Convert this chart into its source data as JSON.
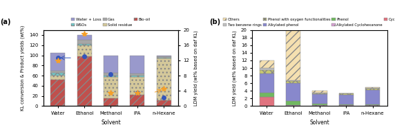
{
  "solvents": [
    "Water",
    "Ethanol",
    "Methanol",
    "IPA",
    "n-Hexane"
  ],
  "chart_a": {
    "bio_oil": [
      52,
      98,
      16,
      22,
      12
    ],
    "solid_residue": [
      8,
      22,
      42,
      36,
      82
    ],
    "wso": [
      5,
      2,
      2,
      2,
      1
    ],
    "gas": [
      5,
      8,
      5,
      4,
      3
    ],
    "water_loss": [
      35,
      10,
      35,
      36,
      2
    ],
    "kl_conversion_pct": [
      95,
      98,
      63,
      26,
      17
    ],
    "ldm_yield_wt": [
      12,
      19,
      3.5,
      3.5,
      4.5
    ],
    "ylim_left": [
      0,
      150
    ],
    "ylim_right": [
      0,
      20
    ],
    "yticks_left": [
      0,
      20,
      40,
      60,
      80,
      100,
      120,
      140
    ],
    "yticks_right": [
      0,
      4,
      8,
      12,
      16,
      20
    ],
    "ylabel_left": "KL conversion & Product yields (wt%)",
    "ylabel_right": "LDM yield (wt% based on daf KL)",
    "xlabel": "Solvent",
    "panel_label": "(a)",
    "colors": {
      "bio_oil": "#c0504d",
      "solid_residue": "#d4c89a",
      "wso": "#70c8c8",
      "gas": "#a6a6a6",
      "water_loss": "#9999cc"
    },
    "kl_conv_color": "#3355bb",
    "ldm_color": "#f5a02a",
    "arrow_kl_color": "#3355bb",
    "arrow_ldm_color": "#f5a02a"
  },
  "chart_b": {
    "cyclohexanone": [
      2.5,
      0.0,
      0.0,
      0.0,
      0.0
    ],
    "alkylated_cyclohexanone": [
      0.0,
      0.3,
      0.2,
      0.2,
      0.2
    ],
    "phenol": [
      1.0,
      1.0,
      0.4,
      0.3,
      0.3
    ],
    "alkylated_phenol": [
      5.0,
      4.8,
      2.5,
      2.5,
      3.8
    ],
    "phenol_oxy": [
      1.0,
      0.5,
      0.3,
      0.3,
      0.3
    ],
    "two_benzene": [
      0.5,
      0.1,
      0.1,
      0.1,
      0.1
    ],
    "others": [
      2.0,
      13.2,
      0.5,
      0.0,
      0.2
    ],
    "ylim": [
      0,
      20
    ],
    "yticks": [
      0,
      2,
      4,
      6,
      8,
      10,
      12,
      14,
      16,
      18,
      20
    ],
    "ylabel": "LDM yield (wt% based on daf KL)",
    "xlabel": "Solvent",
    "panel_label": "(b)",
    "colors": {
      "cyclohexanone": "#e0737f",
      "alkylated_cyclohexanone": "#d4a0d0",
      "phenol": "#70b860",
      "alkylated_phenol": "#8888cc",
      "phenol_oxy": "#c8c870",
      "two_benzene": "#c0c0c0",
      "others": "#f5e0b0"
    }
  },
  "fig_width": 5.72,
  "fig_height": 1.98,
  "dpi": 100
}
